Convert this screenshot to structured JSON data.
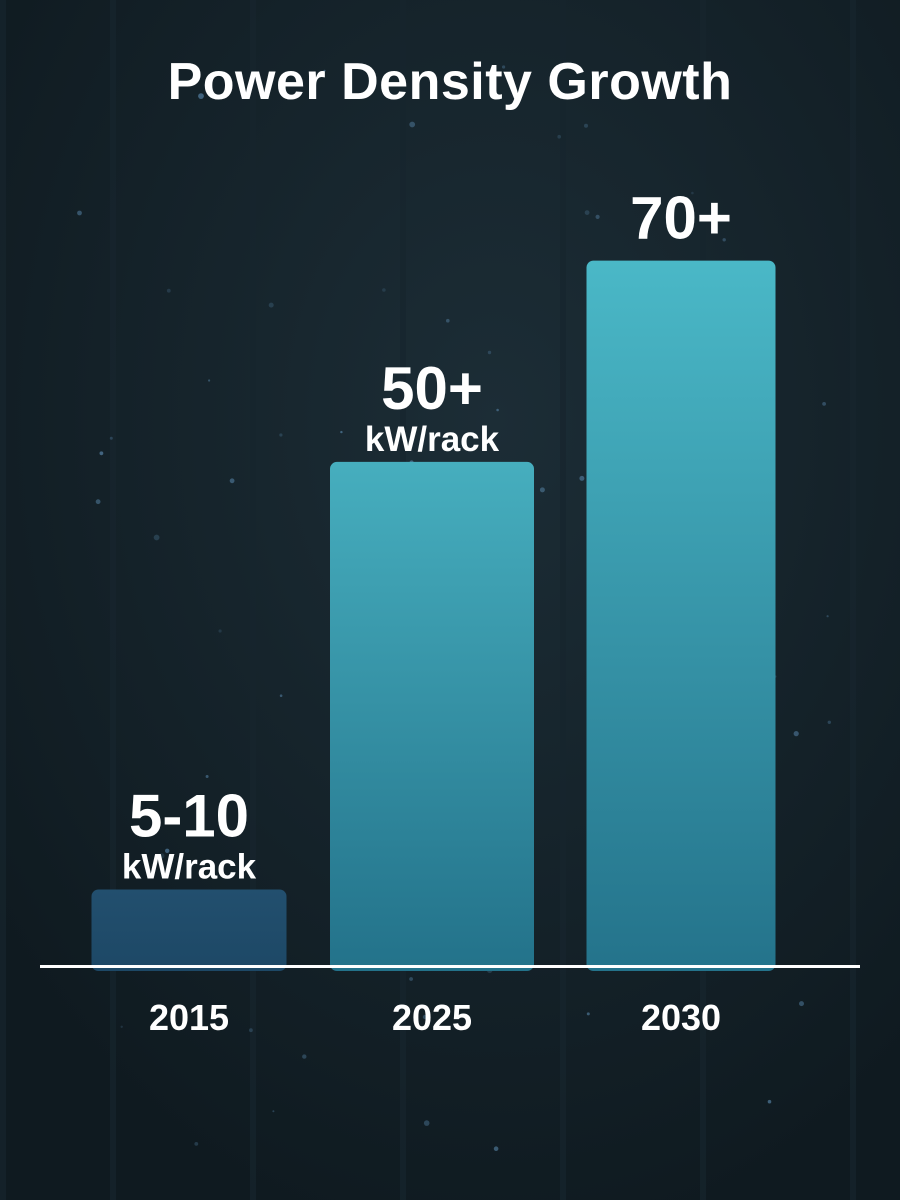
{
  "chart_data": {
    "type": "bar",
    "title": "Power Density Growth",
    "categories": [
      "2015",
      "2025",
      "2030"
    ],
    "values": [
      7.5,
      50,
      70
    ],
    "value_labels": [
      "5-10",
      "50+",
      "70+"
    ],
    "unit_labels": [
      "kW/rack",
      "kW/rack",
      ""
    ],
    "ylim": [
      0,
      80
    ],
    "grid": false,
    "bar_colors": [
      [
        "#224f6e",
        "#1d4866"
      ],
      [
        "#46aebe",
        "#23728a"
      ],
      [
        "#4ab8c7",
        "#24738b"
      ]
    ],
    "axis_color": "#ffffff"
  },
  "background": {
    "base": "#0f1a20",
    "rack": "#17252d",
    "led": "#6fa8d6"
  }
}
